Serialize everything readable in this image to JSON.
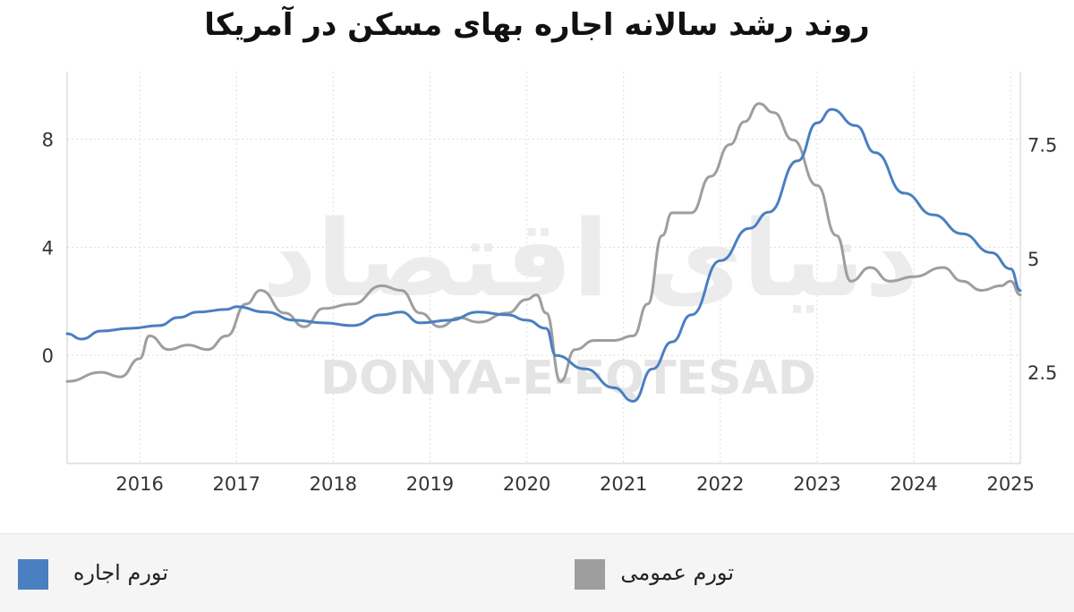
{
  "chart_data": {
    "type": "line",
    "title": "روند رشد سالانه اجاره بهای مسکن در آمریکا",
    "watermark_fa": "دنیای اقتصاد",
    "watermark_en": "DONYA-E-EQTESAD",
    "x_ticks": [
      "2016",
      "2017",
      "2018",
      "2019",
      "2020",
      "2021",
      "2022",
      "2023",
      "2024",
      "2025"
    ],
    "xlim": [
      2015.25,
      2025.1
    ],
    "left_axis": {
      "ticks": [
        "0",
        "4",
        "8"
      ],
      "ylim": [
        -4,
        10.5
      ]
    },
    "right_axis": {
      "ticks": [
        "2.5",
        "5",
        "7.5"
      ],
      "ylim": [
        0.5,
        9.1
      ]
    },
    "grid": true,
    "series": [
      {
        "name": "تورم اجاره",
        "axis": "left",
        "color": "#4a7fc1",
        "points": [
          [
            2015.25,
            0.8
          ],
          [
            2015.4,
            0.6
          ],
          [
            2015.6,
            0.9
          ],
          [
            2015.9,
            1.0
          ],
          [
            2016.2,
            1.1
          ],
          [
            2016.4,
            1.4
          ],
          [
            2016.6,
            1.6
          ],
          [
            2016.9,
            1.7
          ],
          [
            2017.0,
            1.8
          ],
          [
            2017.3,
            1.6
          ],
          [
            2017.6,
            1.3
          ],
          [
            2017.9,
            1.2
          ],
          [
            2018.2,
            1.1
          ],
          [
            2018.5,
            1.5
          ],
          [
            2018.7,
            1.6
          ],
          [
            2018.9,
            1.2
          ],
          [
            2019.2,
            1.3
          ],
          [
            2019.5,
            1.6
          ],
          [
            2019.8,
            1.5
          ],
          [
            2020.0,
            1.3
          ],
          [
            2020.2,
            1.0
          ],
          [
            2020.3,
            0.0
          ],
          [
            2020.6,
            -0.5
          ],
          [
            2020.9,
            -1.2
          ],
          [
            2021.1,
            -1.7
          ],
          [
            2021.3,
            -0.5
          ],
          [
            2021.5,
            0.5
          ],
          [
            2021.7,
            1.5
          ],
          [
            2022.0,
            3.5
          ],
          [
            2022.3,
            4.7
          ],
          [
            2022.5,
            5.3
          ],
          [
            2022.8,
            7.2
          ],
          [
            2023.0,
            8.6
          ],
          [
            2023.15,
            9.1
          ],
          [
            2023.4,
            8.5
          ],
          [
            2023.6,
            7.5
          ],
          [
            2023.9,
            6.0
          ],
          [
            2024.2,
            5.2
          ],
          [
            2024.5,
            4.5
          ],
          [
            2024.8,
            3.8
          ],
          [
            2025.0,
            3.2
          ],
          [
            2025.1,
            2.4
          ]
        ]
      },
      {
        "name": "تورم عمومی",
        "axis": "right",
        "color": "#9e9e9e",
        "points": [
          [
            2015.25,
            2.3
          ],
          [
            2015.6,
            2.5
          ],
          [
            2015.8,
            2.4
          ],
          [
            2016.0,
            2.8
          ],
          [
            2016.1,
            3.3
          ],
          [
            2016.3,
            3.0
          ],
          [
            2016.5,
            3.1
          ],
          [
            2016.7,
            3.0
          ],
          [
            2016.9,
            3.3
          ],
          [
            2017.1,
            4.0
          ],
          [
            2017.25,
            4.3
          ],
          [
            2017.5,
            3.8
          ],
          [
            2017.7,
            3.5
          ],
          [
            2017.9,
            3.9
          ],
          [
            2018.2,
            4.0
          ],
          [
            2018.5,
            4.4
          ],
          [
            2018.7,
            4.3
          ],
          [
            2018.9,
            3.8
          ],
          [
            2019.1,
            3.5
          ],
          [
            2019.3,
            3.7
          ],
          [
            2019.5,
            3.6
          ],
          [
            2019.8,
            3.8
          ],
          [
            2020.0,
            4.1
          ],
          [
            2020.1,
            4.2
          ],
          [
            2020.2,
            3.8
          ],
          [
            2020.35,
            2.3
          ],
          [
            2020.5,
            3.0
          ],
          [
            2020.7,
            3.2
          ],
          [
            2020.9,
            3.2
          ],
          [
            2021.1,
            3.3
          ],
          [
            2021.25,
            4.0
          ],
          [
            2021.4,
            5.5
          ],
          [
            2021.5,
            6.0
          ],
          [
            2021.7,
            6.0
          ],
          [
            2021.9,
            6.8
          ],
          [
            2022.1,
            7.5
          ],
          [
            2022.25,
            8.0
          ],
          [
            2022.4,
            8.4
          ],
          [
            2022.55,
            8.2
          ],
          [
            2022.75,
            7.6
          ],
          [
            2023.0,
            6.6
          ],
          [
            2023.2,
            5.5
          ],
          [
            2023.35,
            4.5
          ],
          [
            2023.55,
            4.8
          ],
          [
            2023.75,
            4.5
          ],
          [
            2024.0,
            4.6
          ],
          [
            2024.3,
            4.8
          ],
          [
            2024.5,
            4.5
          ],
          [
            2024.7,
            4.3
          ],
          [
            2024.9,
            4.4
          ],
          [
            2025.0,
            4.5
          ],
          [
            2025.1,
            4.2
          ]
        ]
      }
    ]
  }
}
